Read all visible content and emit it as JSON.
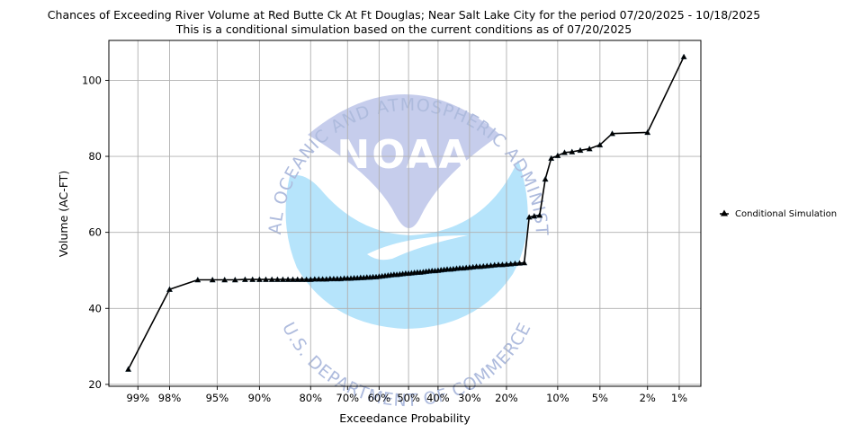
{
  "chart_data": {
    "type": "line",
    "title": "Chances of Exceeding River Volume at Red Butte Ck At Ft Douglas; Near Salt Lake City for the period 07/20/2025 - 10/18/2025",
    "subtitle": "This is a conditional simulation based on the current conditions as of 07/20/2025",
    "xlabel": "Exceedance Probability",
    "ylabel": "Volume (AC-FT)",
    "x_scale": "normal-probability",
    "x_ticks": [
      {
        "p": 99,
        "label": "99%"
      },
      {
        "p": 98,
        "label": "98%"
      },
      {
        "p": 95,
        "label": "95%"
      },
      {
        "p": 90,
        "label": "90%"
      },
      {
        "p": 80,
        "label": "80%"
      },
      {
        "p": 70,
        "label": "70%"
      },
      {
        "p": 60,
        "label": "60%"
      },
      {
        "p": 50,
        "label": "50%"
      },
      {
        "p": 40,
        "label": "40%"
      },
      {
        "p": 30,
        "label": "30%"
      },
      {
        "p": 20,
        "label": "20%"
      },
      {
        "p": 10,
        "label": "10%"
      },
      {
        "p": 5,
        "label": "5%"
      },
      {
        "p": 2,
        "label": "2%"
      },
      {
        "p": 1,
        "label": "1%"
      }
    ],
    "y_ticks": [
      20,
      40,
      60,
      80,
      100
    ],
    "ylim": [
      19.5,
      110.5
    ],
    "xlim_percent": [
      99.5,
      0.6
    ],
    "grid": true,
    "legend_position": "right",
    "series": [
      {
        "name": "Conditional Simulation",
        "color": "#000000",
        "marker": "triangle",
        "points": [
          [
            99.2,
            24.0
          ],
          [
            98.0,
            45.0
          ],
          [
            96.5,
            47.5
          ],
          [
            95.4,
            47.5
          ],
          [
            94.3,
            47.5
          ],
          [
            93.2,
            47.5
          ],
          [
            92.0,
            47.6
          ],
          [
            91.0,
            47.6
          ],
          [
            90.0,
            47.6
          ],
          [
            89.0,
            47.6
          ],
          [
            88.0,
            47.6
          ],
          [
            87.0,
            47.6
          ],
          [
            86.0,
            47.6
          ],
          [
            85.0,
            47.6
          ],
          [
            84.0,
            47.6
          ],
          [
            83.0,
            47.6
          ],
          [
            82.0,
            47.6
          ],
          [
            81.0,
            47.6
          ],
          [
            80.0,
            47.6
          ],
          [
            79.0,
            47.7
          ],
          [
            78.0,
            47.7
          ],
          [
            77.0,
            47.7
          ],
          [
            76.0,
            47.7
          ],
          [
            75.0,
            47.8
          ],
          [
            74.0,
            47.8
          ],
          [
            73.0,
            47.8
          ],
          [
            72.0,
            47.8
          ],
          [
            71.0,
            47.9
          ],
          [
            70.0,
            47.9
          ],
          [
            69.0,
            47.9
          ],
          [
            68.0,
            48.0
          ],
          [
            67.0,
            48.0
          ],
          [
            66.0,
            48.1
          ],
          [
            65.0,
            48.1
          ],
          [
            64.0,
            48.2
          ],
          [
            63.0,
            48.2
          ],
          [
            62.0,
            48.3
          ],
          [
            61.0,
            48.3
          ],
          [
            60.0,
            48.4
          ],
          [
            59.0,
            48.5
          ],
          [
            58.0,
            48.6
          ],
          [
            57.0,
            48.7
          ],
          [
            56.0,
            48.8
          ],
          [
            55.0,
            48.9
          ],
          [
            54.0,
            48.9
          ],
          [
            53.0,
            49.0
          ],
          [
            52.0,
            49.1
          ],
          [
            51.0,
            49.2
          ],
          [
            50.0,
            49.2
          ],
          [
            49.0,
            49.3
          ],
          [
            48.0,
            49.4
          ],
          [
            47.0,
            49.5
          ],
          [
            46.0,
            49.5
          ],
          [
            45.0,
            49.6
          ],
          [
            44.0,
            49.7
          ],
          [
            43.0,
            49.8
          ],
          [
            42.0,
            49.9
          ],
          [
            41.0,
            49.9
          ],
          [
            40.0,
            50.0
          ],
          [
            39.0,
            50.1
          ],
          [
            38.0,
            50.2
          ],
          [
            37.0,
            50.3
          ],
          [
            36.0,
            50.3
          ],
          [
            35.0,
            50.4
          ],
          [
            34.0,
            50.5
          ],
          [
            33.0,
            50.6
          ],
          [
            32.0,
            50.6
          ],
          [
            31.0,
            50.7
          ],
          [
            30.0,
            50.8
          ],
          [
            29.0,
            50.9
          ],
          [
            28.0,
            51.0
          ],
          [
            27.0,
            51.0
          ],
          [
            26.0,
            51.1
          ],
          [
            25.0,
            51.2
          ],
          [
            24.0,
            51.3
          ],
          [
            23.0,
            51.4
          ],
          [
            22.0,
            51.5
          ],
          [
            21.0,
            51.5
          ],
          [
            20.0,
            51.6
          ],
          [
            19.0,
            51.7
          ],
          [
            18.0,
            51.8
          ],
          [
            17.0,
            51.9
          ],
          [
            16.0,
            52.0
          ],
          [
            15.0,
            64.0
          ],
          [
            14.0,
            64.3
          ],
          [
            13.0,
            64.5
          ],
          [
            12.0,
            74.0
          ],
          [
            11.0,
            79.5
          ],
          [
            10.0,
            80.2
          ],
          [
            9.0,
            81.0
          ],
          [
            8.0,
            81.2
          ],
          [
            7.0,
            81.6
          ],
          [
            6.0,
            82.0
          ],
          [
            5.0,
            83.0
          ],
          [
            4.0,
            86.0
          ],
          [
            2.0,
            86.3
          ],
          [
            0.9,
            106.2
          ]
        ]
      }
    ]
  },
  "watermark": {
    "top_text": "NATIONAL OCEANIC AND ATMOSPHERIC ADMINISTRATION",
    "bottom_text": "U.S. DEPARTMENT OF COMMERCE",
    "logo_text": "NOAA",
    "colors": {
      "upper": "#c3cbeb",
      "lower": "#b3e3fb",
      "ring_text": "#aab8dc"
    }
  }
}
